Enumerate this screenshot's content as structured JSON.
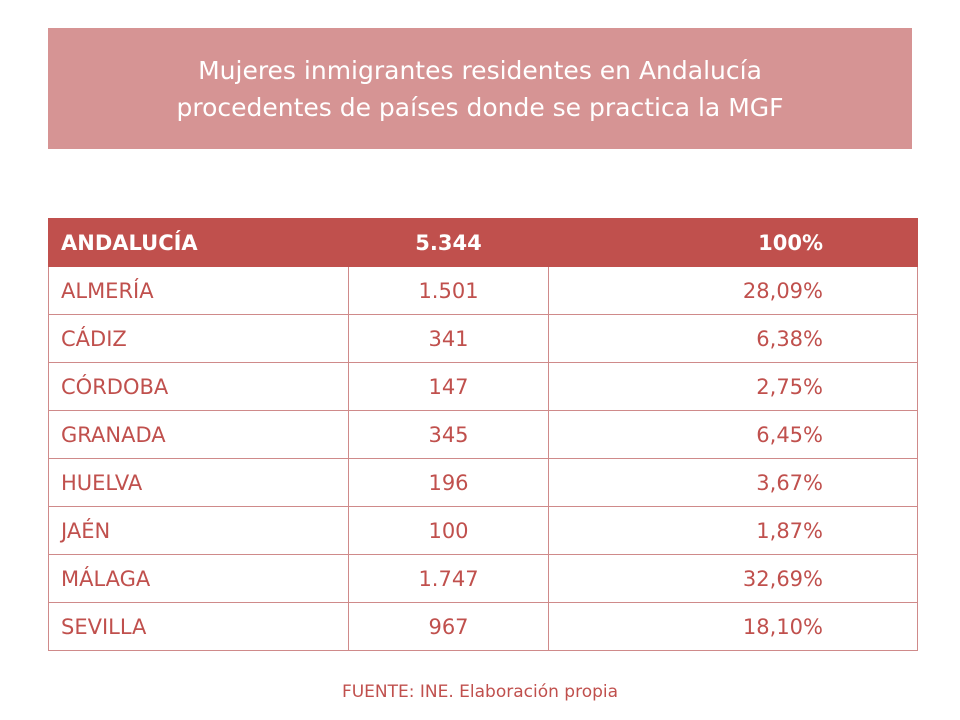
{
  "title": {
    "line1": "Mujeres inmigrantes residentes en Andalucía",
    "line2": "procedentes de países donde se practica la MGF"
  },
  "table": {
    "header": {
      "name": "ANDALUCÍA",
      "count": "5.344",
      "percent": "100%"
    },
    "rows": [
      {
        "name": "ALMERÍA",
        "count": "1.501",
        "percent": "28,09%"
      },
      {
        "name": "CÁDIZ",
        "count": "341",
        "percent": "6,38%"
      },
      {
        "name": "CÓRDOBA",
        "count": "147",
        "percent": "2,75%"
      },
      {
        "name": "GRANADA",
        "count": "345",
        "percent": "6,45%"
      },
      {
        "name": "HUELVA",
        "count": "196",
        "percent": "3,67%"
      },
      {
        "name": "JAÉN",
        "count": "100",
        "percent": "1,87%"
      },
      {
        "name": "MÁLAGA",
        "count": "1.747",
        "percent": "32,69%"
      },
      {
        "name": "SEVILLA",
        "count": "967",
        "percent": "18,10%"
      }
    ]
  },
  "source": "FUENTE: INE. Elaboración propia",
  "colors": {
    "title_background": "#d69494",
    "header_background": "#c0504d",
    "text_accent": "#c0504d",
    "border": "#cf8a8a"
  }
}
